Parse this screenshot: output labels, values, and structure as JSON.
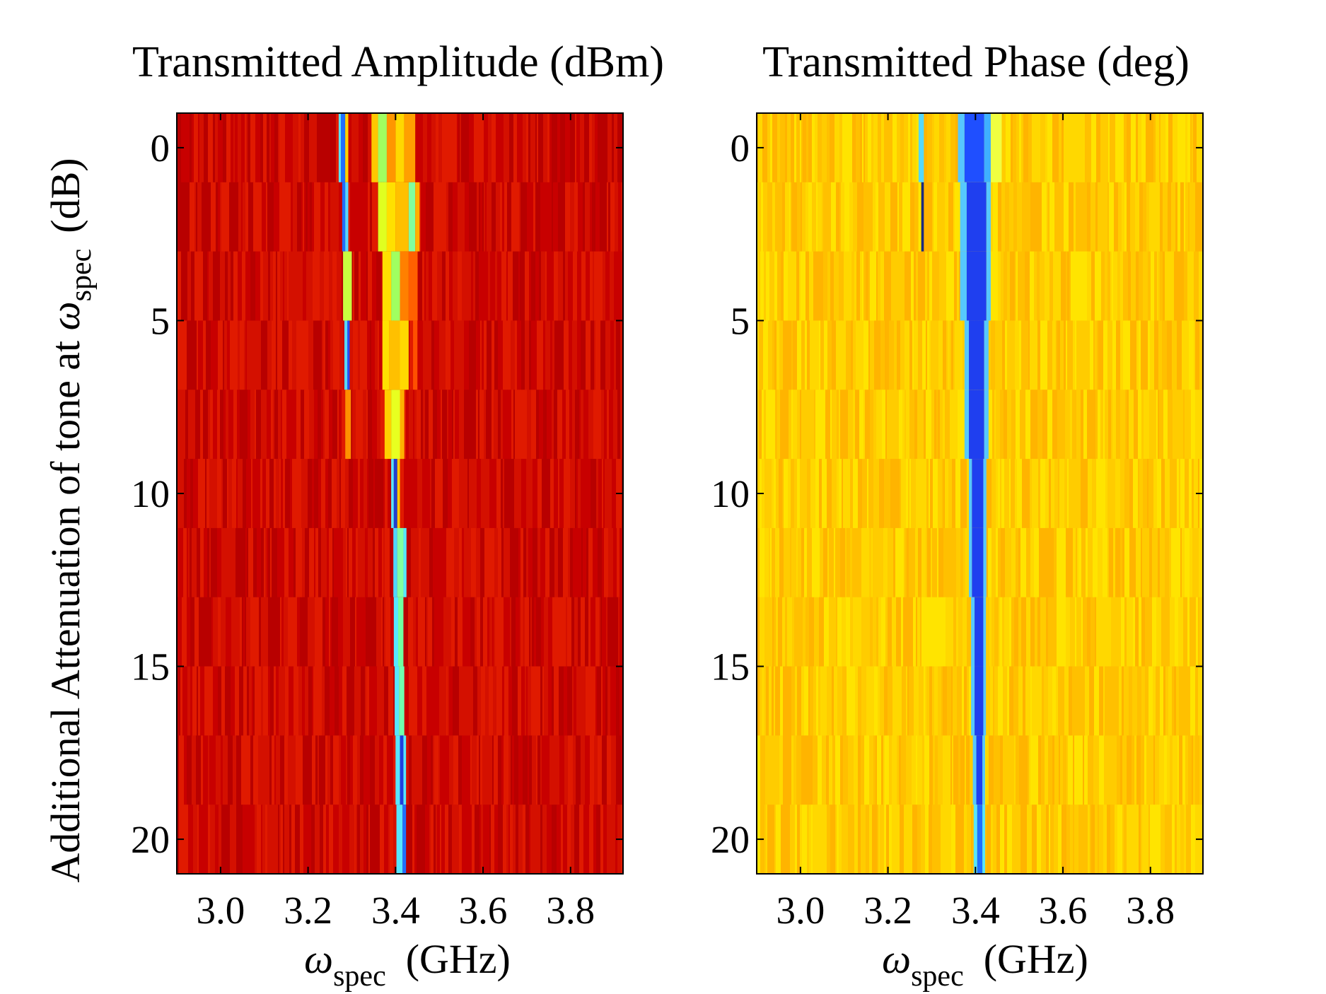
{
  "figure": {
    "ylabel_prefix": "Additional Attenuation of  tone at ",
    "ylabel_symbol": "ω",
    "ylabel_subscript": "spec",
    "ylabel_suffix": "(dB)"
  },
  "chart_data": [
    {
      "type": "heatmap",
      "title": "Transmitted Amplitude (dBm)",
      "xlabel_symbol": "ω",
      "xlabel_subscript": "spec",
      "xlabel_unit": "(GHz)",
      "xlim": [
        2.9,
        3.92
      ],
      "ylim": [
        -1,
        21
      ],
      "y_reversed": true,
      "xticks": [
        3.0,
        3.2,
        3.4,
        3.6,
        3.8
      ],
      "xtick_labels": [
        "3.0",
        "3.2",
        "3.4",
        "3.6",
        "3.8"
      ],
      "yticks": [
        0,
        5,
        10,
        15,
        20
      ],
      "ytick_labels": [
        "0",
        "5",
        "10",
        "15",
        "20"
      ],
      "attenuation_rows_dB": [
        0,
        2,
        4,
        6,
        8,
        10,
        12,
        14,
        16,
        18,
        20
      ],
      "colormap": "jet",
      "background_colors": [
        "#b80000",
        "#c80000",
        "#d41000",
        "#e01a00"
      ],
      "features": [
        {
          "rows": [
            0
          ],
          "x": [
            3.275,
            3.285
          ],
          "color": "#1f6fff"
        },
        {
          "rows": [
            0
          ],
          "x": [
            3.27,
            3.275
          ],
          "color": "#56e6ff"
        },
        {
          "rows": [
            0
          ],
          "x": [
            3.285,
            3.292
          ],
          "color": "#ffd400"
        },
        {
          "rows": [
            0
          ],
          "x": [
            3.345,
            3.36
          ],
          "color": "#ffc800"
        },
        {
          "rows": [
            0
          ],
          "x": [
            3.36,
            3.38
          ],
          "color": "#a0ff60"
        },
        {
          "rows": [
            0
          ],
          "x": [
            3.38,
            3.4
          ],
          "color": "#ff9600"
        },
        {
          "rows": [
            0
          ],
          "x": [
            3.4,
            3.42
          ],
          "color": "#ffd800"
        },
        {
          "rows": [
            0
          ],
          "x": [
            3.42,
            3.445
          ],
          "color": "#ffa000"
        },
        {
          "rows": [
            1
          ],
          "x": [
            3.278,
            3.285
          ],
          "color": "#1f6fff"
        },
        {
          "rows": [
            1
          ],
          "x": [
            3.285,
            3.292
          ],
          "color": "#56d8ff"
        },
        {
          "rows": [
            1
          ],
          "x": [
            3.36,
            3.38
          ],
          "color": "#e0ff20"
        },
        {
          "rows": [
            1
          ],
          "x": [
            3.38,
            3.4
          ],
          "color": "#ffe000"
        },
        {
          "rows": [
            1
          ],
          "x": [
            3.4,
            3.43
          ],
          "color": "#ffc000"
        },
        {
          "rows": [
            1
          ],
          "x": [
            3.43,
            3.445
          ],
          "color": "#80ffa0"
        },
        {
          "rows": [
            1
          ],
          "x": [
            3.445,
            3.455
          ],
          "color": "#ffb000"
        },
        {
          "rows": [
            2
          ],
          "x": [
            3.28,
            3.3
          ],
          "color": "#c8ff40"
        },
        {
          "rows": [
            2
          ],
          "x": [
            3.37,
            3.39
          ],
          "color": "#ffe000"
        },
        {
          "rows": [
            2
          ],
          "x": [
            3.39,
            3.41
          ],
          "color": "#a0ff60"
        },
        {
          "rows": [
            2
          ],
          "x": [
            3.41,
            3.43
          ],
          "color": "#ff8000"
        },
        {
          "rows": [
            2
          ],
          "x": [
            3.43,
            3.45
          ],
          "color": "#ff6000"
        },
        {
          "rows": [
            3
          ],
          "x": [
            3.283,
            3.29
          ],
          "color": "#56d8ff"
        },
        {
          "rows": [
            3
          ],
          "x": [
            3.29,
            3.295
          ],
          "color": "#1f4fff"
        },
        {
          "rows": [
            3
          ],
          "x": [
            3.37,
            3.385
          ],
          "color": "#ffe000"
        },
        {
          "rows": [
            3
          ],
          "x": [
            3.385,
            3.41
          ],
          "color": "#ffc000"
        },
        {
          "rows": [
            3
          ],
          "x": [
            3.41,
            3.43
          ],
          "color": "#ffd800"
        },
        {
          "rows": [
            3
          ],
          "x": [
            3.44,
            3.45
          ],
          "color": "#ff5000"
        },
        {
          "rows": [
            4
          ],
          "x": [
            3.285,
            3.298
          ],
          "color": "#ff9000"
        },
        {
          "rows": [
            4
          ],
          "x": [
            3.375,
            3.39
          ],
          "color": "#ffd000"
        },
        {
          "rows": [
            4
          ],
          "x": [
            3.39,
            3.41
          ],
          "color": "#e8ff20"
        },
        {
          "rows": [
            4
          ],
          "x": [
            3.41,
            3.42
          ],
          "color": "#ffb000"
        },
        {
          "rows": [
            5
          ],
          "x": [
            3.39,
            3.396
          ],
          "color": "#56e6ff"
        },
        {
          "rows": [
            5
          ],
          "x": [
            3.396,
            3.404
          ],
          "color": "#1f3fcf"
        },
        {
          "rows": [
            5
          ],
          "x": [
            3.404,
            3.41
          ],
          "color": "#ffc800"
        },
        {
          "rows": [
            6
          ],
          "x": [
            3.395,
            3.404
          ],
          "color": "#4fd8ff"
        },
        {
          "rows": [
            6
          ],
          "x": [
            3.404,
            3.418
          ],
          "color": "#80ffa0"
        },
        {
          "rows": [
            6
          ],
          "x": [
            3.418,
            3.425
          ],
          "color": "#56e6ff"
        },
        {
          "rows": [
            7
          ],
          "x": [
            3.396,
            3.406
          ],
          "color": "#56e6ff"
        },
        {
          "rows": [
            7
          ],
          "x": [
            3.406,
            3.418
          ],
          "color": "#70ffa0"
        },
        {
          "rows": [
            8
          ],
          "x": [
            3.398,
            3.408
          ],
          "color": "#56e6ff"
        },
        {
          "rows": [
            8
          ],
          "x": [
            3.408,
            3.42
          ],
          "color": "#70ffb0"
        },
        {
          "rows": [
            9
          ],
          "x": [
            3.4,
            3.41
          ],
          "color": "#56e6ff"
        },
        {
          "rows": [
            9
          ],
          "x": [
            3.41,
            3.418
          ],
          "color": "#1f3fdf"
        },
        {
          "rows": [
            9
          ],
          "x": [
            3.418,
            3.424
          ],
          "color": "#56e6ff"
        },
        {
          "rows": [
            10
          ],
          "x": [
            3.402,
            3.416
          ],
          "color": "#56e6ff"
        },
        {
          "rows": [
            10
          ],
          "x": [
            3.416,
            3.424
          ],
          "color": "#1f6fff"
        }
      ]
    },
    {
      "type": "heatmap",
      "title": "Transmitted Phase (deg)",
      "xlabel_symbol": "ω",
      "xlabel_subscript": "spec",
      "xlabel_unit": "(GHz)",
      "xlim": [
        2.9,
        3.92
      ],
      "ylim": [
        -1,
        21
      ],
      "y_reversed": true,
      "xticks": [
        3.0,
        3.2,
        3.4,
        3.6,
        3.8
      ],
      "xtick_labels": [
        "3.0",
        "3.2",
        "3.4",
        "3.6",
        "3.8"
      ],
      "yticks": [
        0,
        5,
        10,
        15,
        20
      ],
      "ytick_labels": [
        "0",
        "5",
        "10",
        "15",
        "20"
      ],
      "attenuation_rows_dB": [
        0,
        2,
        4,
        6,
        8,
        10,
        12,
        14,
        16,
        18,
        20
      ],
      "colormap": "jet",
      "background_colors": [
        "#ffc000",
        "#ffcc00",
        "#ffd800",
        "#ffe400",
        "#ffb400"
      ],
      "features": [
        {
          "rows": [
            0
          ],
          "x": [
            3.27,
            3.282
          ],
          "color": "#56d8ff"
        },
        {
          "rows": [
            1
          ],
          "x": [
            3.276,
            3.282
          ],
          "color": "#1a2a80"
        },
        {
          "rows": [
            1
          ],
          "x": [
            3.27,
            3.276
          ],
          "color": "#ffe800"
        },
        {
          "rows": [
            0
          ],
          "x": [
            3.36,
            3.375
          ],
          "color": "#56c8ff"
        },
        {
          "rows": [
            0
          ],
          "x": [
            3.375,
            3.42
          ],
          "color": "#1f4fff"
        },
        {
          "rows": [
            0
          ],
          "x": [
            3.42,
            3.435
          ],
          "color": "#3fb0ff"
        },
        {
          "rows": [
            0
          ],
          "x": [
            3.435,
            3.46
          ],
          "color": "#f0ff40"
        },
        {
          "rows": [
            1,
            2
          ],
          "x": [
            3.365,
            3.38
          ],
          "color": "#56c8ff"
        },
        {
          "rows": [
            1,
            2
          ],
          "x": [
            3.38,
            3.425
          ],
          "color": "#1f3fef"
        },
        {
          "rows": [
            1,
            2
          ],
          "x": [
            3.425,
            3.435
          ],
          "color": "#56c8ff"
        },
        {
          "rows": [
            3,
            4
          ],
          "x": [
            3.375,
            3.385
          ],
          "color": "#56c8ff"
        },
        {
          "rows": [
            3,
            4
          ],
          "x": [
            3.385,
            3.42
          ],
          "color": "#1f3fef"
        },
        {
          "rows": [
            3,
            4
          ],
          "x": [
            3.42,
            3.43
          ],
          "color": "#56c8ff"
        },
        {
          "rows": [
            5,
            6
          ],
          "x": [
            3.385,
            3.392
          ],
          "color": "#56c8ff"
        },
        {
          "rows": [
            5,
            6
          ],
          "x": [
            3.392,
            3.418
          ],
          "color": "#1f3fef"
        },
        {
          "rows": [
            5,
            6
          ],
          "x": [
            3.418,
            3.425
          ],
          "color": "#56c8ff"
        },
        {
          "rows": [
            7,
            8
          ],
          "x": [
            3.39,
            3.398
          ],
          "color": "#56c8ff"
        },
        {
          "rows": [
            7,
            8
          ],
          "x": [
            3.398,
            3.418
          ],
          "color": "#1f3fef"
        },
        {
          "rows": [
            7,
            8
          ],
          "x": [
            3.418,
            3.424
          ],
          "color": "#56c8ff"
        },
        {
          "rows": [
            9
          ],
          "x": [
            3.394,
            3.402
          ],
          "color": "#56c8ff"
        },
        {
          "rows": [
            9
          ],
          "x": [
            3.402,
            3.416
          ],
          "color": "#1f3fef"
        },
        {
          "rows": [
            9
          ],
          "x": [
            3.416,
            3.422
          ],
          "color": "#56c8ff"
        },
        {
          "rows": [
            10
          ],
          "x": [
            3.396,
            3.404
          ],
          "color": "#56e6ff"
        },
        {
          "rows": [
            10
          ],
          "x": [
            3.404,
            3.416
          ],
          "color": "#1f6fff"
        },
        {
          "rows": [
            10
          ],
          "x": [
            3.416,
            3.422
          ],
          "color": "#56e6ff"
        }
      ]
    }
  ]
}
